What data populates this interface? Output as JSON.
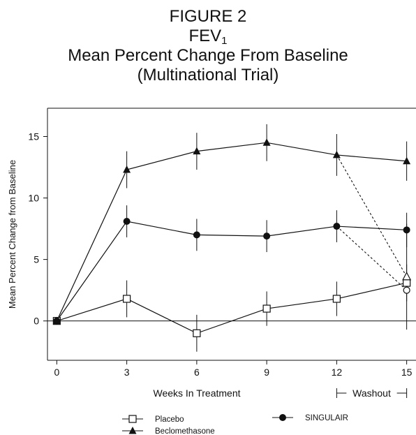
{
  "chart_data": {
    "type": "line",
    "title": "FIGURE 2",
    "subtitle": {
      "main": "FEV",
      "sub": "1"
    },
    "subtitle2": "Mean Percent Change From Baseline",
    "subtitle3": "(Multinational Trial)",
    "xlabel": "Weeks In Treatment",
    "ylabel": "Mean Percent Change from Baseline",
    "washout_label": "Washout",
    "x_ticks": [
      0,
      3,
      6,
      9,
      12,
      15
    ],
    "y_ticks": [
      0,
      5,
      10,
      15
    ],
    "xlim": [
      -0.4,
      15.4
    ],
    "ylim": [
      -3.2,
      17.3
    ],
    "washout_range": [
      12,
      15
    ],
    "grid": false,
    "legend_position": "bottom",
    "series": [
      {
        "name": "Placebo",
        "marker": "open-square",
        "points": [
          {
            "x": 0,
            "y": 0,
            "err": 0
          },
          {
            "x": 3,
            "y": 1.8,
            "err": 1.5
          },
          {
            "x": 6,
            "y": -1.0,
            "err": 1.5
          },
          {
            "x": 9,
            "y": 1.0,
            "err": 1.4
          },
          {
            "x": 12,
            "y": 1.8,
            "err": 1.4
          },
          {
            "x": 15,
            "y": 3.1,
            "err": 1.5
          }
        ]
      },
      {
        "name": "SINGULAIR",
        "marker": "filled-circle",
        "points": [
          {
            "x": 0,
            "y": 0,
            "err": 0
          },
          {
            "x": 3,
            "y": 8.1,
            "err": 1.3
          },
          {
            "x": 6,
            "y": 7.0,
            "err": 1.3
          },
          {
            "x": 9,
            "y": 6.9,
            "err": 1.3
          },
          {
            "x": 12,
            "y": 7.7,
            "err": 1.3
          },
          {
            "x": 15,
            "y": 7.4,
            "err": 1.4
          }
        ],
        "washout": {
          "x": 15,
          "y": 2.5,
          "marker": "open-circle"
        }
      },
      {
        "name": "Beclomethasone",
        "marker": "filled-triangle",
        "points": [
          {
            "x": 0,
            "y": 0,
            "err": 0
          },
          {
            "x": 3,
            "y": 12.3,
            "err": 1.5
          },
          {
            "x": 6,
            "y": 13.8,
            "err": 1.5
          },
          {
            "x": 9,
            "y": 14.5,
            "err": 1.5
          },
          {
            "x": 12,
            "y": 13.5,
            "err": 1.7
          },
          {
            "x": 15,
            "y": 13.0,
            "err": 1.6
          }
        ],
        "washout": {
          "x": 15,
          "y": 3.6,
          "marker": "open-triangle",
          "err": 4.3
        }
      }
    ]
  }
}
